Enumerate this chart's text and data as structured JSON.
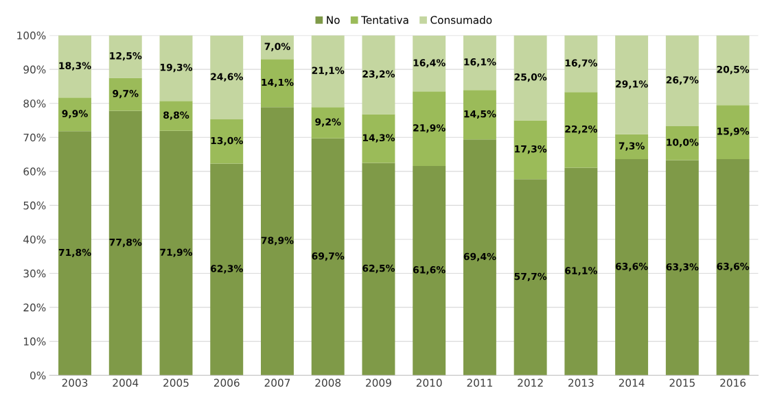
{
  "chart_data": {
    "type": "bar",
    "stacked": true,
    "legend": "top",
    "grid": "y",
    "categories": [
      "2003",
      "2004",
      "2005",
      "2006",
      "2007",
      "2008",
      "2009",
      "2010",
      "2011",
      "2012",
      "2013",
      "2014",
      "2015",
      "2016"
    ],
    "ylim": [
      0,
      100
    ],
    "yticks": [
      {
        "value": 0,
        "label": "0%"
      },
      {
        "value": 10,
        "label": "10%"
      },
      {
        "value": 20,
        "label": "20%"
      },
      {
        "value": 30,
        "label": "30%"
      },
      {
        "value": 40,
        "label": "40%"
      },
      {
        "value": 50,
        "label": "50%"
      },
      {
        "value": 60,
        "label": "60%"
      },
      {
        "value": 70,
        "label": "70%"
      },
      {
        "value": 80,
        "label": "80%"
      },
      {
        "value": 90,
        "label": "90%"
      },
      {
        "value": 100,
        "label": "100%"
      }
    ],
    "series": [
      {
        "name": "No",
        "color": "#7f9a48",
        "values": [
          71.8,
          77.8,
          71.9,
          62.3,
          78.9,
          69.7,
          62.5,
          61.6,
          69.4,
          57.7,
          61.1,
          63.6,
          63.3,
          63.6
        ],
        "value_labels": [
          "71,8%",
          "77,8%",
          "71,9%",
          "62,3%",
          "78,9%",
          "69,7%",
          "62,5%",
          "61,6%",
          "69,4%",
          "57,7%",
          "61,1%",
          "63,6%",
          "63,3%",
          "63,6%"
        ]
      },
      {
        "name": "Tentativa",
        "color": "#9bbb59",
        "values": [
          9.9,
          9.7,
          8.8,
          13.0,
          14.1,
          9.2,
          14.3,
          21.9,
          14.5,
          17.3,
          22.2,
          7.3,
          10.0,
          15.9
        ],
        "value_labels": [
          "9,9%",
          "9,7%",
          "8,8%",
          "13,0%",
          "14,1%",
          "9,2%",
          "14,3%",
          "21,9%",
          "14,5%",
          "17,3%",
          "22,2%",
          "7,3%",
          "10,0%",
          "15,9%"
        ]
      },
      {
        "name": "Consumado",
        "color": "#c4d6a0",
        "values": [
          18.3,
          12.5,
          19.3,
          24.6,
          7.0,
          21.1,
          23.2,
          16.4,
          16.1,
          25.0,
          16.7,
          29.1,
          26.7,
          20.5
        ],
        "value_labels": [
          "18,3%",
          "12,5%",
          "19,3%",
          "24,6%",
          "7,0%",
          "21,1%",
          "23,2%",
          "16,4%",
          "16,1%",
          "25,0%",
          "16,7%",
          "29,1%",
          "26,7%",
          "20,5%"
        ]
      }
    ]
  }
}
